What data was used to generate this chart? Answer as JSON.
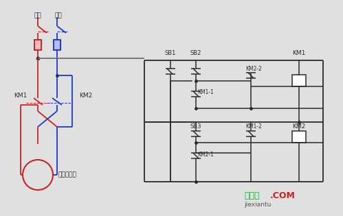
{
  "bg_color": "#e0e0e0",
  "black": "#2a2a2a",
  "red": "#cc2222",
  "blue": "#1a3acc",
  "gray": "#707070",
  "dark": "#303030",
  "watermark_green": "#22aa44",
  "watermark_red": "#cc2222",
  "watermark_gray": "#555555",
  "watermark_text": "接线图",
  "watermark_com": ".COM",
  "watermark_pinyin": "jiexiantu",
  "label_zhengji": "正极",
  "label_fuji": "负极",
  "label_KM1": "KM1",
  "label_KM2": "KM2",
  "label_motor": "直流电动机",
  "label_SB1": "SB1",
  "label_SB2": "SB2",
  "label_SB3": "SB3",
  "label_KM1_1": "KM1-1",
  "label_KM2_2": "KM2-2",
  "label_KM1_2": "KM1-2",
  "label_KM2_1": "KM2-1",
  "label_KM1_coil": "KM1",
  "label_KM2_coil": "KM2"
}
